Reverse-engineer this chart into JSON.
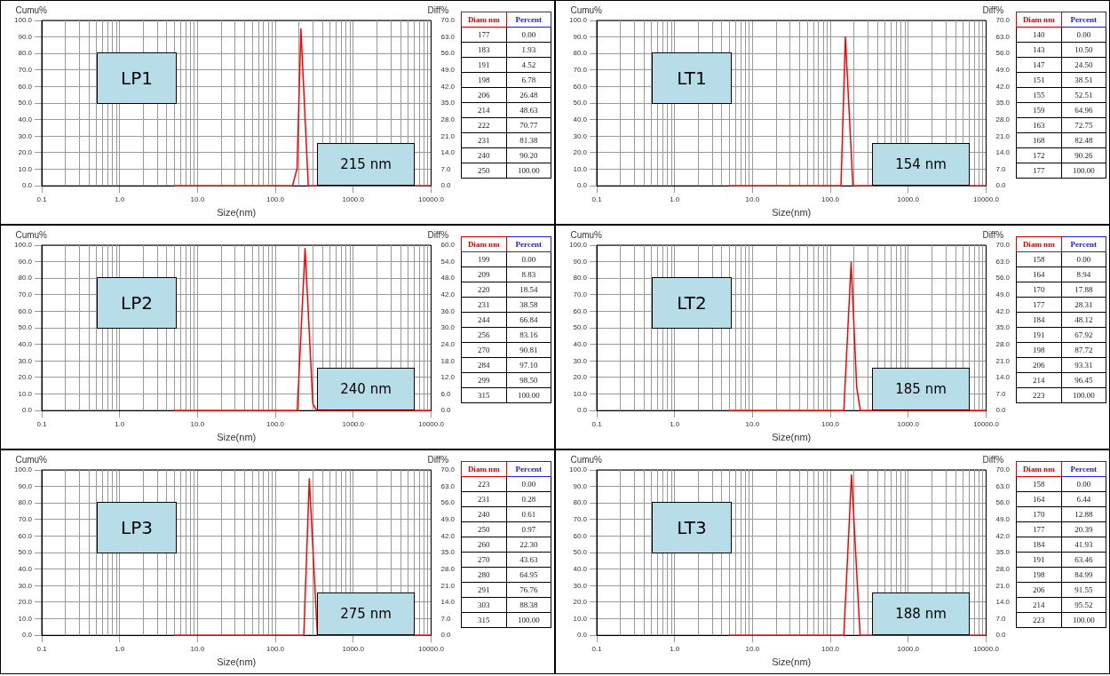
{
  "chart_data": [
    {
      "type": "line",
      "title": "LP1",
      "xlabel": "Size(nm)",
      "ylabel": "Cumu%",
      "y2label": "Diff%",
      "log": "x",
      "grid": true,
      "xlim": [
        0.1,
        10000
      ],
      "xticks": [
        {
          "value": 0.1,
          "label": "0.1"
        },
        {
          "value": 1,
          "label": "1.0"
        },
        {
          "value": 10,
          "label": "10.0"
        },
        {
          "value": 100,
          "label": "100.0"
        },
        {
          "value": 1000,
          "label": "1000.0"
        },
        {
          "value": 10000,
          "label": "10000.0"
        }
      ],
      "ylim": [
        0,
        100
      ],
      "yticks": [
        {
          "value": 0,
          "label": "0.0"
        },
        {
          "value": 10,
          "label": "10.0"
        },
        {
          "value": 20,
          "label": "20.0"
        },
        {
          "value": 30,
          "label": "30.0"
        },
        {
          "value": 40,
          "label": "40.0"
        },
        {
          "value": 50,
          "label": "50.0"
        },
        {
          "value": 60,
          "label": "60.0"
        },
        {
          "value": 70,
          "label": "70.0"
        },
        {
          "value": 80,
          "label": "80.0"
        },
        {
          "value": 90,
          "label": "90.0"
        },
        {
          "value": 100,
          "label": "100.0"
        }
      ],
      "y2lim": [
        0,
        70
      ],
      "y2ticks": [
        {
          "value": 0,
          "label": "0.0"
        },
        {
          "value": 7,
          "label": "7.0"
        },
        {
          "value": 14,
          "label": "14.0"
        },
        {
          "value": 21,
          "label": "21.0"
        },
        {
          "value": 28,
          "label": "28.0"
        },
        {
          "value": 35,
          "label": "35.0"
        },
        {
          "value": 42,
          "label": "42.0"
        },
        {
          "value": 49,
          "label": "49.0"
        },
        {
          "value": 56,
          "label": "56.0"
        },
        {
          "value": 63,
          "label": "63.0"
        },
        {
          "value": 70,
          "label": "70.0"
        }
      ],
      "series": [
        {
          "color": "#ff0000",
          "axis": "y2",
          "x": [
            5,
            166,
            190,
            213,
            265,
            10000
          ],
          "values": [
            0,
            0,
            7.2,
            66.4,
            0,
            0
          ]
        }
      ],
      "annotations": [
        "215 nm",
        "Diam nm",
        "Percent",
        "177",
        "0.00",
        "183",
        "1.93",
        "191",
        "4.52",
        "198",
        "6.78",
        "206",
        "26.48",
        "214",
        "48.63",
        "222",
        "70.77",
        "231",
        "81.38",
        "240",
        "90.20",
        "250",
        "100.00"
      ]
    },
    {
      "type": "line",
      "title": "LT1",
      "xlabel": "Size(nm)",
      "ylabel": "Cumu%",
      "y2label": "Diff%",
      "log": "x",
      "grid": true,
      "xlim": [
        0.1,
        10000
      ],
      "xticks": [
        {
          "value": 0.1,
          "label": "0.1"
        },
        {
          "value": 1,
          "label": "1.0"
        },
        {
          "value": 10,
          "label": "10.0"
        },
        {
          "value": 100,
          "label": "100.0"
        },
        {
          "value": 1000,
          "label": "1000.0"
        },
        {
          "value": 10000,
          "label": "10000.0"
        }
      ],
      "ylim": [
        0,
        100
      ],
      "yticks": [
        {
          "value": 0,
          "label": "0.0"
        },
        {
          "value": 10,
          "label": "10.0"
        },
        {
          "value": 20,
          "label": "20.0"
        },
        {
          "value": 30,
          "label": "30.0"
        },
        {
          "value": 40,
          "label": "40.0"
        },
        {
          "value": 50,
          "label": "50.0"
        },
        {
          "value": 60,
          "label": "60.0"
        },
        {
          "value": 70,
          "label": "70.0"
        },
        {
          "value": 80,
          "label": "80.0"
        },
        {
          "value": 90,
          "label": "90.0"
        },
        {
          "value": 100,
          "label": "100.0"
        }
      ],
      "y2lim": [
        0,
        70
      ],
      "y2ticks": [
        {
          "value": 0,
          "label": "0.0"
        },
        {
          "value": 7,
          "label": "7.0"
        },
        {
          "value": 14,
          "label": "14.0"
        },
        {
          "value": 21,
          "label": "21.0"
        },
        {
          "value": 28,
          "label": "28.0"
        },
        {
          "value": 35,
          "label": "35.0"
        },
        {
          "value": 42,
          "label": "42.0"
        },
        {
          "value": 49,
          "label": "49.0"
        },
        {
          "value": 56,
          "label": "56.0"
        },
        {
          "value": 63,
          "label": "63.0"
        },
        {
          "value": 70,
          "label": "70.0"
        }
      ],
      "series": [
        {
          "color": "#ff0000",
          "axis": "y2",
          "x": [
            5,
            137,
            156,
            195,
            10000
          ],
          "values": [
            0,
            0,
            63,
            0,
            0
          ]
        }
      ],
      "annotations": [
        "154 nm",
        "Diam nm",
        "Percent",
        "140",
        "0.00",
        "143",
        "10.50",
        "147",
        "24.50",
        "151",
        "38.51",
        "155",
        "52.51",
        "159",
        "64.96",
        "163",
        "72.75",
        "168",
        "82.48",
        "172",
        "90.26",
        "177",
        "100.00"
      ]
    },
    {
      "type": "line",
      "title": "LP2",
      "xlabel": "Size(nm)",
      "ylabel": "Cumu%",
      "y2label": "Diff%",
      "log": "x",
      "grid": true,
      "xlim": [
        0.1,
        10000
      ],
      "xticks": [
        {
          "value": 0.1,
          "label": "0.1"
        },
        {
          "value": 1,
          "label": "1.0"
        },
        {
          "value": 10,
          "label": "10.0"
        },
        {
          "value": 100,
          "label": "100.0"
        },
        {
          "value": 1000,
          "label": "1000.0"
        },
        {
          "value": 10000,
          "label": "10000.0"
        }
      ],
      "ylim": [
        0,
        100
      ],
      "yticks": [
        {
          "value": 0,
          "label": "0.0"
        },
        {
          "value": 10,
          "label": "10.0"
        },
        {
          "value": 20,
          "label": "20.0"
        },
        {
          "value": 30,
          "label": "30.0"
        },
        {
          "value": 40,
          "label": "40.0"
        },
        {
          "value": 50,
          "label": "50.0"
        },
        {
          "value": 60,
          "label": "60.0"
        },
        {
          "value": 70,
          "label": "70.0"
        },
        {
          "value": 80,
          "label": "80.0"
        },
        {
          "value": 90,
          "label": "90.0"
        },
        {
          "value": 100,
          "label": "100.0"
        }
      ],
      "y2lim": [
        0,
        60
      ],
      "y2ticks": [
        {
          "value": 0,
          "label": "0.0"
        },
        {
          "value": 6,
          "label": "6.0"
        },
        {
          "value": 12,
          "label": "12.0"
        },
        {
          "value": 18,
          "label": "18.0"
        },
        {
          "value": 24,
          "label": "24.0"
        },
        {
          "value": 30,
          "label": "30.0"
        },
        {
          "value": 36,
          "label": "36.0"
        },
        {
          "value": 42,
          "label": "42.0"
        },
        {
          "value": 48,
          "label": "48.0"
        },
        {
          "value": 54,
          "label": "54.0"
        },
        {
          "value": 60,
          "label": "60.0"
        }
      ],
      "series": [
        {
          "color": "#ff0000",
          "axis": "y2",
          "x": [
            5,
            191,
            241,
            303,
            339,
            10000
          ],
          "values": [
            0,
            0,
            58.8,
            2.5,
            0,
            0
          ]
        }
      ],
      "annotations": [
        "240 nm",
        "Diam nm",
        "Percent",
        "199",
        "0.00",
        "209",
        "8.83",
        "220",
        "18.54",
        "231",
        "38.58",
        "244",
        "66.84",
        "256",
        "83.16",
        "270",
        "90.81",
        "284",
        "97.10",
        "299",
        "98.50",
        "315",
        "100.00"
      ]
    },
    {
      "type": "line",
      "title": "LT2",
      "xlabel": "Size(nm)",
      "ylabel": "Cumu%",
      "y2label": "Diff%",
      "log": "x",
      "grid": true,
      "xlim": [
        0.1,
        10000
      ],
      "xticks": [
        {
          "value": 0.1,
          "label": "0.1"
        },
        {
          "value": 1,
          "label": "1.0"
        },
        {
          "value": 10,
          "label": "10.0"
        },
        {
          "value": 100,
          "label": "100.0"
        },
        {
          "value": 1000,
          "label": "1000.0"
        },
        {
          "value": 10000,
          "label": "10000.0"
        }
      ],
      "ylim": [
        0,
        100
      ],
      "yticks": [
        {
          "value": 0,
          "label": "0.0"
        },
        {
          "value": 10,
          "label": "10.0"
        },
        {
          "value": 20,
          "label": "20.0"
        },
        {
          "value": 30,
          "label": "30.0"
        },
        {
          "value": 40,
          "label": "40.0"
        },
        {
          "value": 50,
          "label": "50.0"
        },
        {
          "value": 60,
          "label": "60.0"
        },
        {
          "value": 70,
          "label": "70.0"
        },
        {
          "value": 80,
          "label": "80.0"
        },
        {
          "value": 90,
          "label": "90.0"
        },
        {
          "value": 100,
          "label": "100.0"
        }
      ],
      "y2lim": [
        0,
        70
      ],
      "y2ticks": [
        {
          "value": 0,
          "label": "0.0"
        },
        {
          "value": 7,
          "label": "7.0"
        },
        {
          "value": 14,
          "label": "14.0"
        },
        {
          "value": 21,
          "label": "21.0"
        },
        {
          "value": 28,
          "label": "28.0"
        },
        {
          "value": 35,
          "label": "35.0"
        },
        {
          "value": 42,
          "label": "42.0"
        },
        {
          "value": 49,
          "label": "49.0"
        },
        {
          "value": 56,
          "label": "56.0"
        },
        {
          "value": 63,
          "label": "63.0"
        },
        {
          "value": 70,
          "label": "70.0"
        }
      ],
      "series": [
        {
          "color": "#ff0000",
          "axis": "y2",
          "x": [
            5,
            149,
            185,
            218,
            243,
            10000
          ],
          "values": [
            0,
            0,
            62.7,
            9.9,
            0,
            0
          ]
        }
      ],
      "annotations": [
        "185 nm",
        "Diam nm",
        "Percent",
        "158",
        "0.00",
        "164",
        "8.94",
        "170",
        "17.88",
        "177",
        "28.31",
        "184",
        "48.12",
        "191",
        "67.92",
        "198",
        "87.72",
        "206",
        "93.31",
        "214",
        "96.45",
        "223",
        "100.00"
      ]
    },
    {
      "type": "line",
      "title": "LP3",
      "xlabel": "Size(nm)",
      "ylabel": "Cumu%",
      "y2label": "Diff%",
      "log": "x",
      "grid": true,
      "xlim": [
        0.1,
        10000
      ],
      "xticks": [
        {
          "value": 0.1,
          "label": "0.1"
        },
        {
          "value": 1,
          "label": "1.0"
        },
        {
          "value": 10,
          "label": "10.0"
        },
        {
          "value": 100,
          "label": "100.0"
        },
        {
          "value": 1000,
          "label": "1000.0"
        },
        {
          "value": 10000,
          "label": "10000.0"
        }
      ],
      "ylim": [
        0,
        100
      ],
      "yticks": [
        {
          "value": 0,
          "label": "0.0"
        },
        {
          "value": 10,
          "label": "10.0"
        },
        {
          "value": 20,
          "label": "20.0"
        },
        {
          "value": 30,
          "label": "30.0"
        },
        {
          "value": 40,
          "label": "40.0"
        },
        {
          "value": 50,
          "label": "50.0"
        },
        {
          "value": 60,
          "label": "60.0"
        },
        {
          "value": 70,
          "label": "70.0"
        },
        {
          "value": 80,
          "label": "80.0"
        },
        {
          "value": 90,
          "label": "90.0"
        },
        {
          "value": 100,
          "label": "100.0"
        }
      ],
      "y2lim": [
        0,
        70
      ],
      "y2ticks": [
        {
          "value": 0,
          "label": "0.0"
        },
        {
          "value": 7,
          "label": "7.0"
        },
        {
          "value": 14,
          "label": "14.0"
        },
        {
          "value": 21,
          "label": "21.0"
        },
        {
          "value": 28,
          "label": "28.0"
        },
        {
          "value": 35,
          "label": "35.0"
        },
        {
          "value": 42,
          "label": "42.0"
        },
        {
          "value": 49,
          "label": "49.0"
        },
        {
          "value": 56,
          "label": "56.0"
        },
        {
          "value": 63,
          "label": "63.0"
        },
        {
          "value": 70,
          "label": "70.0"
        }
      ],
      "series": [
        {
          "color": "#ff0000",
          "axis": "y2",
          "x": [
            5,
            232,
            273,
            347,
            10000
          ],
          "values": [
            0,
            0,
            66.2,
            0,
            0
          ]
        }
      ],
      "annotations": [
        "275 nm",
        "Diam nm",
        "Percent",
        "223",
        "0.00",
        "231",
        "0.28",
        "240",
        "0.61",
        "250",
        "0.97",
        "260",
        "22.30",
        "270",
        "43.63",
        "280",
        "64.95",
        "291",
        "76.76",
        "303",
        "88.38",
        "315",
        "100.00"
      ]
    },
    {
      "type": "line",
      "title": "LT3",
      "xlabel": "Size(nm)",
      "ylabel": "Cumu%",
      "y2label": "Diff%",
      "log": "x",
      "grid": true,
      "xlim": [
        0.1,
        10000
      ],
      "xticks": [
        {
          "value": 0.1,
          "label": "0.1"
        },
        {
          "value": 1,
          "label": "1.0"
        },
        {
          "value": 10,
          "label": "10.0"
        },
        {
          "value": 100,
          "label": "100.0"
        },
        {
          "value": 1000,
          "label": "1000.0"
        },
        {
          "value": 10000,
          "label": "10000.0"
        }
      ],
      "ylim": [
        0,
        100
      ],
      "yticks": [
        {
          "value": 0,
          "label": "0.0"
        },
        {
          "value": 10,
          "label": "10.0"
        },
        {
          "value": 20,
          "label": "20.0"
        },
        {
          "value": 30,
          "label": "30.0"
        },
        {
          "value": 40,
          "label": "40.0"
        },
        {
          "value": 50,
          "label": "50.0"
        },
        {
          "value": 60,
          "label": "60.0"
        },
        {
          "value": 70,
          "label": "70.0"
        },
        {
          "value": 80,
          "label": "80.0"
        },
        {
          "value": 90,
          "label": "90.0"
        },
        {
          "value": 100,
          "label": "100.0"
        }
      ],
      "y2lim": [
        0,
        70
      ],
      "y2ticks": [
        {
          "value": 0,
          "label": "0.0"
        },
        {
          "value": 7,
          "label": "7.0"
        },
        {
          "value": 14,
          "label": "14.0"
        },
        {
          "value": 21,
          "label": "21.0"
        },
        {
          "value": 28,
          "label": "28.0"
        },
        {
          "value": 35,
          "label": "35.0"
        },
        {
          "value": 42,
          "label": "42.0"
        },
        {
          "value": 49,
          "label": "49.0"
        },
        {
          "value": 56,
          "label": "56.0"
        },
        {
          "value": 63,
          "label": "63.0"
        },
        {
          "value": 70,
          "label": "70.0"
        }
      ],
      "series": [
        {
          "color": "#ff0000",
          "axis": "y2",
          "x": [
            5,
            149,
            187,
            241,
            10000
          ],
          "values": [
            0,
            0,
            67.9,
            0,
            0
          ]
        }
      ],
      "annotations": [
        "188 nm",
        "Diam nm",
        "Percent",
        "158",
        "0.00",
        "164",
        "6.44",
        "170",
        "12.88",
        "177",
        "20.39",
        "184",
        "41.93",
        "191",
        "63.46",
        "198",
        "84.99",
        "206",
        "91.55",
        "214",
        "95.52",
        "223",
        "100.00"
      ]
    }
  ]
}
